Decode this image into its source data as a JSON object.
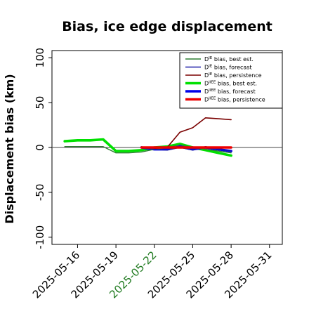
{
  "chart_data": {
    "type": "line",
    "title": "Bias, ice edge displacement",
    "xlabel": "",
    "ylabel": "Displacement bias (km)",
    "ylim": [
      -108,
      108
    ],
    "xlim": [
      "2025-05-14",
      "2025-06-01"
    ],
    "yticks": [
      {
        "value": 100,
        "label": "100"
      },
      {
        "value": 50,
        "label": "50"
      },
      {
        "value": 0,
        "label": "0"
      },
      {
        "value": -50,
        "label": "-50"
      },
      {
        "value": -100,
        "label": "-100"
      }
    ],
    "xticks": [
      {
        "value": "2025-05-16",
        "label": "2025-05-16",
        "color": "#000000"
      },
      {
        "value": "2025-05-19",
        "label": "2025-05-19",
        "color": "#000000"
      },
      {
        "value": "2025-05-22",
        "label": "2025-05-22",
        "color": "#1f7a1f"
      },
      {
        "value": "2025-05-25",
        "label": "2025-05-25",
        "color": "#000000"
      },
      {
        "value": "2025-05-28",
        "label": "2025-05-28",
        "color": "#000000"
      },
      {
        "value": "2025-05-31",
        "label": "2025-05-31",
        "color": "#000000"
      }
    ],
    "zero_line": true,
    "grid": false,
    "legend_position": "top-right",
    "series": [
      {
        "name": "D^IE bias, best est.",
        "label_base": "D",
        "label_sup": "IE",
        "label_rest": " bias, best est.",
        "color": "#2e7d32",
        "width": 1.4,
        "points": [
          [
            "2025-05-15",
            1
          ],
          [
            "2025-05-16",
            1
          ],
          [
            "2025-05-18",
            1
          ],
          [
            "2025-05-19",
            -6
          ],
          [
            "2025-05-20",
            -6
          ],
          [
            "2025-05-21",
            -5
          ],
          [
            "2025-05-22",
            -2
          ],
          [
            "2025-05-23",
            0
          ],
          [
            "2025-05-24",
            3
          ],
          [
            "2025-05-25",
            0
          ],
          [
            "2025-05-26",
            -2
          ],
          [
            "2025-05-27",
            -4
          ],
          [
            "2025-05-28",
            -6
          ]
        ]
      },
      {
        "name": "D^IE bias, forecast",
        "label_base": "D",
        "label_sup": "IE",
        "label_rest": " bias, forecast",
        "color": "#1a1aa8",
        "width": 1.4,
        "points": [
          [
            "2025-05-21",
            0
          ],
          [
            "2025-05-22",
            -2
          ],
          [
            "2025-05-23",
            -3
          ],
          [
            "2025-05-24",
            0
          ],
          [
            "2025-05-25",
            -3
          ],
          [
            "2025-05-26",
            1
          ],
          [
            "2025-05-27",
            -2
          ],
          [
            "2025-05-28",
            -4
          ]
        ]
      },
      {
        "name": "D^IE bias, persistence",
        "label_base": "D",
        "label_sup": "IE",
        "label_rest": " bias, persistence",
        "color": "#7a0000",
        "width": 1.6,
        "points": [
          [
            "2025-05-21",
            0
          ],
          [
            "2025-05-22",
            -1
          ],
          [
            "2025-05-23",
            0
          ],
          [
            "2025-05-24",
            17
          ],
          [
            "2025-05-25",
            22
          ],
          [
            "2025-05-26",
            33
          ],
          [
            "2025-05-27",
            32
          ],
          [
            "2025-05-28",
            31
          ]
        ]
      },
      {
        "name": "D^IIEE bias, best est.",
        "label_base": "D",
        "label_sup": "IIEE",
        "label_rest": " bias, best est.",
        "color": "#00e000",
        "width": 3.6,
        "points": [
          [
            "2025-05-15",
            7
          ],
          [
            "2025-05-16",
            8
          ],
          [
            "2025-05-17",
            8
          ],
          [
            "2025-05-18",
            9
          ],
          [
            "2025-05-19",
            -4
          ],
          [
            "2025-05-20",
            -4
          ],
          [
            "2025-05-21",
            -3
          ],
          [
            "2025-05-22",
            0
          ],
          [
            "2025-05-23",
            1
          ],
          [
            "2025-05-24",
            4
          ],
          [
            "2025-05-25",
            0
          ],
          [
            "2025-05-26",
            -3
          ],
          [
            "2025-05-27",
            -6
          ],
          [
            "2025-05-28",
            -9
          ]
        ]
      },
      {
        "name": "D^IIEE bias, forecast",
        "label_base": "D",
        "label_sup": "IIEE",
        "label_rest": " bias, forecast",
        "color": "#0000e8",
        "width": 3.6,
        "points": [
          [
            "2025-05-21",
            0
          ],
          [
            "2025-05-22",
            -2
          ],
          [
            "2025-05-23",
            -2
          ],
          [
            "2025-05-24",
            1
          ],
          [
            "2025-05-25",
            -2
          ],
          [
            "2025-05-26",
            0
          ],
          [
            "2025-05-27",
            -2
          ],
          [
            "2025-05-28",
            -4
          ]
        ]
      },
      {
        "name": "D^IIEE bias, persistence",
        "label_base": "D",
        "label_sup": "IIEE",
        "label_rest": " bias, persistence",
        "color": "#ee0000",
        "width": 3.6,
        "points": [
          [
            "2025-05-21",
            0
          ],
          [
            "2025-05-22",
            0
          ],
          [
            "2025-05-23",
            0
          ],
          [
            "2025-05-24",
            0
          ],
          [
            "2025-05-25",
            0
          ],
          [
            "2025-05-26",
            0
          ],
          [
            "2025-05-27",
            0
          ],
          [
            "2025-05-28",
            0
          ]
        ]
      }
    ]
  }
}
